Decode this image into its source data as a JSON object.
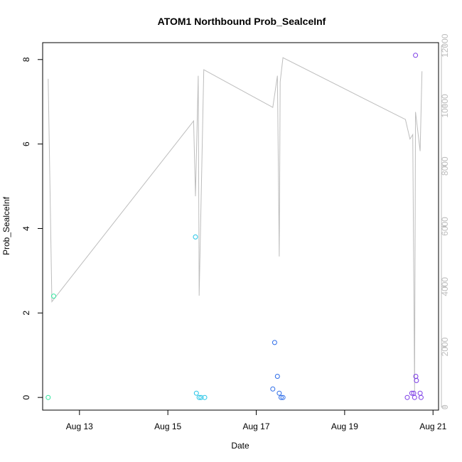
{
  "chart_data": {
    "type": "scatter",
    "title": "ATOM1 Northbound Prob_SealceInf",
    "xlabel": "Date",
    "ylabel": "Prob_SealceInf",
    "x_ticks": [
      {
        "date": "2023-08-13",
        "label": "Aug 13"
      },
      {
        "date": "2023-08-15",
        "label": "Aug 15"
      },
      {
        "date": "2023-08-17",
        "label": "Aug 17"
      },
      {
        "date": "2023-08-19",
        "label": "Aug 19"
      },
      {
        "date": "2023-08-21",
        "label": "Aug 21"
      }
    ],
    "xlim": [
      "2023-08-12 04:00",
      "2023-08-21 03:00"
    ],
    "ylim": [
      -0.3,
      8.4
    ],
    "y_ticks": [
      0,
      2,
      4,
      6,
      8
    ],
    "y2lim": [
      -100,
      12100
    ],
    "y2_ticks": [
      0,
      2000,
      4000,
      6000,
      8000,
      10000,
      12000
    ],
    "grid": false,
    "points": [
      {
        "x": "2023-08-12 07:00",
        "y": 0.0,
        "color": "#33e6a0"
      },
      {
        "x": "2023-08-12 10:00",
        "y": 2.4,
        "color": "#33e6a0"
      },
      {
        "x": "2023-08-15 15:00",
        "y": 3.8,
        "color": "#22c4e6"
      },
      {
        "x": "2023-08-15 15:30",
        "y": 0.1,
        "color": "#22c4e6"
      },
      {
        "x": "2023-08-15 17:00",
        "y": 0.0,
        "color": "#22c4e6"
      },
      {
        "x": "2023-08-15 18:00",
        "y": 0.0,
        "color": "#22c4e6"
      },
      {
        "x": "2023-08-15 20:00",
        "y": 0.0,
        "color": "#22c4e6"
      },
      {
        "x": "2023-08-17 09:00",
        "y": 0.2,
        "color": "#2b6be8"
      },
      {
        "x": "2023-08-17 10:00",
        "y": 1.3,
        "color": "#2b6be8"
      },
      {
        "x": "2023-08-17 11:30",
        "y": 0.5,
        "color": "#2b6be8"
      },
      {
        "x": "2023-08-17 12:30",
        "y": 0.1,
        "color": "#2b6be8"
      },
      {
        "x": "2023-08-17 13:30",
        "y": 0.0,
        "color": "#2b6be8"
      },
      {
        "x": "2023-08-17 14:30",
        "y": 0.0,
        "color": "#2b6be8"
      },
      {
        "x": "2023-08-20 10:00",
        "y": 0.0,
        "color": "#7b3be6"
      },
      {
        "x": "2023-08-20 12:30",
        "y": 0.1,
        "color": "#7b3be6"
      },
      {
        "x": "2023-08-20 13:30",
        "y": 0.1,
        "color": "#7b3be6"
      },
      {
        "x": "2023-08-20 14:00",
        "y": 0.0,
        "color": "#7b3be6"
      },
      {
        "x": "2023-08-20 14:30",
        "y": 8.1,
        "color": "#7b3be6"
      },
      {
        "x": "2023-08-20 14:40",
        "y": 0.5,
        "color": "#7b3be6"
      },
      {
        "x": "2023-08-20 15:00",
        "y": 0.4,
        "color": "#7b3be6"
      },
      {
        "x": "2023-08-20 17:00",
        "y": 0.1,
        "color": "#7b3be6"
      },
      {
        "x": "2023-08-20 17:30",
        "y": 0.0,
        "color": "#7b3be6"
      }
    ],
    "secondary_line": {
      "color": "#bdbdbd",
      "points": [
        {
          "x": "2023-08-12 07:00",
          "y2": 10900
        },
        {
          "x": "2023-08-12 09:00",
          "y2": 3500
        },
        {
          "x": "2023-08-15 14:00",
          "y2": 9500
        },
        {
          "x": "2023-08-15 15:00",
          "y2": 7000
        },
        {
          "x": "2023-08-15 16:30",
          "y2": 11000
        },
        {
          "x": "2023-08-15 17:00",
          "y2": 3700
        },
        {
          "x": "2023-08-15 19:30",
          "y2": 11200
        },
        {
          "x": "2023-08-17 09:00",
          "y2": 9950
        },
        {
          "x": "2023-08-17 11:30",
          "y2": 11000
        },
        {
          "x": "2023-08-17 12:30",
          "y2": 5000
        },
        {
          "x": "2023-08-17 13:00",
          "y2": 10800
        },
        {
          "x": "2023-08-17 14:30",
          "y2": 11600
        },
        {
          "x": "2023-08-20 09:00",
          "y2": 9550
        },
        {
          "x": "2023-08-20 11:30",
          "y2": 8900
        },
        {
          "x": "2023-08-20 13:00",
          "y2": 9050
        },
        {
          "x": "2023-08-20 14:00",
          "y2": 500
        },
        {
          "x": "2023-08-20 14:30",
          "y2": 9800
        },
        {
          "x": "2023-08-20 17:00",
          "y2": 8500
        },
        {
          "x": "2023-08-20 18:00",
          "y2": 11150
        }
      ]
    }
  }
}
